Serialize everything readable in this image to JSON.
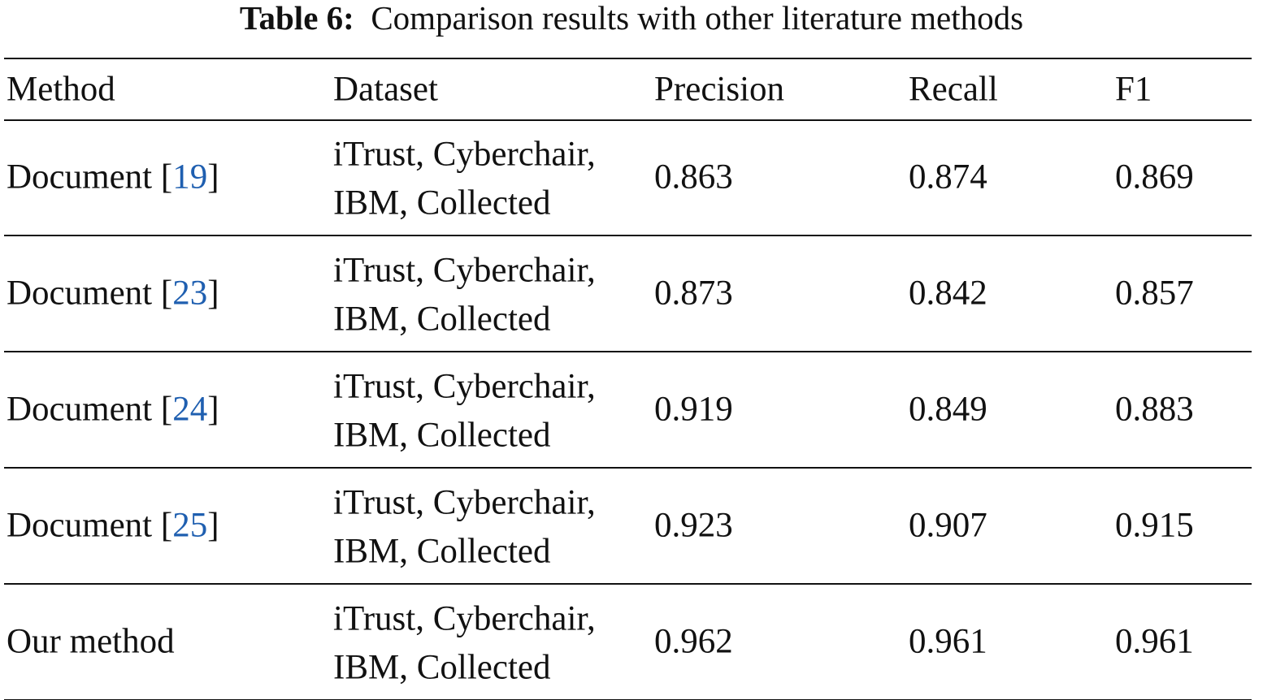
{
  "caption": {
    "label": "Table 6:",
    "text": "Comparison results with other literature methods"
  },
  "table": {
    "header": [
      "Method",
      "Dataset",
      "Precision",
      "Recall",
      "F1"
    ],
    "rows": [
      {
        "method": {
          "prefix": "Document [",
          "ref": "19",
          "suffix": "]"
        },
        "dataset": [
          "iTrust, Cyberchair,",
          "IBM, Collected"
        ],
        "precision": 0.863,
        "recall": 0.874,
        "f1": 0.869
      },
      {
        "method": {
          "prefix": "Document [",
          "ref": "23",
          "suffix": "]"
        },
        "dataset": [
          "iTrust, Cyberchair,",
          "IBM, Collected"
        ],
        "precision": 0.873,
        "recall": 0.842,
        "f1": 0.857
      },
      {
        "method": {
          "prefix": "Document [",
          "ref": "24",
          "suffix": "]"
        },
        "dataset": [
          "iTrust, Cyberchair,",
          "IBM, Collected"
        ],
        "precision": 0.919,
        "recall": 0.849,
        "f1": 0.883
      },
      {
        "method": {
          "prefix": "Document [",
          "ref": "25",
          "suffix": "]"
        },
        "dataset": [
          "iTrust, Cyberchair,",
          "IBM, Collected"
        ],
        "precision": 0.923,
        "recall": 0.907,
        "f1": 0.915
      },
      {
        "method": {
          "prefix": "Our method"
        },
        "dataset": [
          "iTrust, Cyberchair,",
          "IBM, Collected"
        ],
        "precision": 0.962,
        "recall": 0.961,
        "f1": 0.961
      }
    ]
  }
}
